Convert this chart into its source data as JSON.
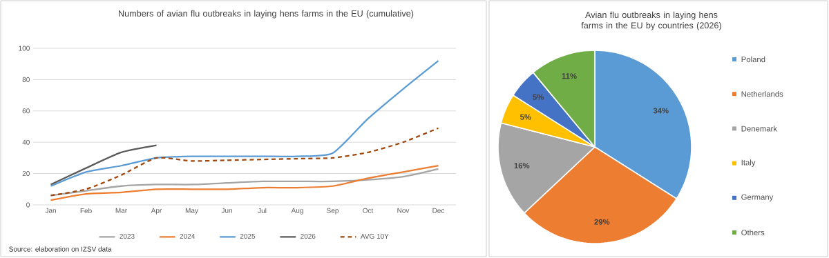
{
  "chart_data": [
    {
      "type": "line",
      "title": "Numbers of avian flu outbreaks in laying hens farms in the EU (cumulative)",
      "categories": [
        "Jan",
        "Feb",
        "Mar",
        "Apr",
        "May",
        "Jun",
        "Jul",
        "Aug",
        "Sep",
        "Oct",
        "Nov",
        "Dec"
      ],
      "series": [
        {
          "name": "2023",
          "color": "#a5a5a5",
          "line_style": "solid",
          "values": [
            6,
            9,
            12,
            13,
            13,
            14,
            15,
            15,
            15,
            16,
            18,
            23
          ]
        },
        {
          "name": "2024",
          "color": "#ed7d31",
          "line_style": "solid",
          "values": [
            3,
            7,
            8,
            10,
            10,
            10,
            11,
            11,
            12,
            17,
            21,
            25
          ]
        },
        {
          "name": "2025",
          "color": "#5b9bd5",
          "line_style": "solid",
          "values": [
            12,
            21,
            25,
            30,
            31,
            31,
            31,
            31,
            33,
            55,
            74,
            92
          ]
        },
        {
          "name": "2026",
          "color": "#595959",
          "line_style": "solid",
          "values": [
            13,
            23.5,
            33.5,
            38,
            null,
            null,
            null,
            null,
            null,
            null,
            null,
            null
          ]
        },
        {
          "name": "AVG 10Y",
          "color": "#9e480e",
          "line_style": "dashed",
          "values": [
            6,
            10,
            19,
            30,
            28,
            28.5,
            29,
            29.5,
            30,
            33.5,
            40,
            49
          ]
        }
      ],
      "ylim": [
        0,
        100
      ],
      "yticks": [
        0,
        20,
        40,
        60,
        80,
        100
      ],
      "grid": "y",
      "legend": "bottom",
      "annotations": [
        "Source: elaboration on IZSV data"
      ]
    },
    {
      "type": "pie",
      "title": "Avian flu outbreaks in laying hens farms in the EU by countries (2026)",
      "categories": [
        "Poland",
        "Netherlands",
        "Denemark",
        "Italy",
        "Germany",
        "Others"
      ],
      "values": [
        34,
        29,
        16,
        5,
        5,
        11
      ],
      "value_labels": [
        "34%",
        "29%",
        "16%",
        "5%",
        "5%",
        "11%"
      ],
      "colors": [
        "#5b9bd5",
        "#ed7d31",
        "#a5a5a5",
        "#ffc000",
        "#4472c4",
        "#70ad47"
      ],
      "legend": "right"
    }
  ]
}
